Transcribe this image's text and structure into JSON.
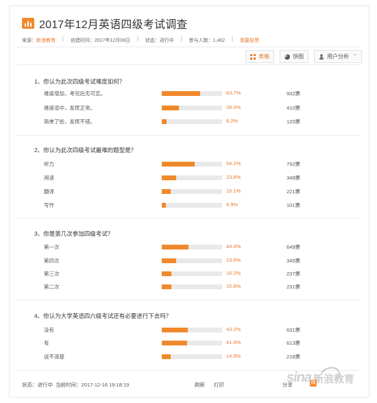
{
  "header": {
    "title": "2017年12月英语四级考试调查",
    "icon": "bar-chart-icon"
  },
  "meta": {
    "source_label": "来源：",
    "source_value": "新浪教育",
    "created_label": "创建时间：",
    "created_value": "2017年12月08日",
    "status_label": "状态：",
    "status_value": "进行中",
    "participants_label": "参与人数：",
    "participants_value": "1,462",
    "vote_link": "我要投票"
  },
  "toolbar": {
    "table_label": "表格",
    "pie_label": "饼图",
    "user_label": "用户分析"
  },
  "colors": {
    "accent": "#f0892c",
    "bar_bg": "#e9e9e9"
  },
  "questions": [
    {
      "title": "1、你认为此次四级考试难度如何？",
      "options": [
        {
          "label": "难度增加，考完后无可恋。",
          "percent": 63.7,
          "percent_text": "63.7%",
          "votes": "932票"
        },
        {
          "label": "难度适中，发挥正常。",
          "percent": 28.0,
          "percent_text": "28.0%",
          "votes": "410票"
        },
        {
          "label": "简单了些，发挥不错。",
          "percent": 8.2,
          "percent_text": "8.2%",
          "votes": "120票"
        }
      ]
    },
    {
      "title": "2、你认为此次四级考试最难的题型是？",
      "options": [
        {
          "label": "听力",
          "percent": 54.2,
          "percent_text": "54.2%",
          "votes": "792票"
        },
        {
          "label": "阅读",
          "percent": 23.8,
          "percent_text": "23.8%",
          "votes": "348票"
        },
        {
          "label": "翻译",
          "percent": 15.1,
          "percent_text": "15.1%",
          "votes": "221票"
        },
        {
          "label": "写作",
          "percent": 6.9,
          "percent_text": "6.9%",
          "votes": "101票"
        }
      ]
    },
    {
      "title": "3、你是第几次参加四级考试？",
      "options": [
        {
          "label": "第一次",
          "percent": 44.4,
          "percent_text": "44.4%",
          "votes": "649票"
        },
        {
          "label": "第四次",
          "percent": 23.6,
          "percent_text": "23.6%",
          "votes": "345票"
        },
        {
          "label": "第三次",
          "percent": 16.2,
          "percent_text": "16.2%",
          "votes": "237票"
        },
        {
          "label": "第二次",
          "percent": 15.8,
          "percent_text": "15.8%",
          "votes": "231票"
        }
      ]
    },
    {
      "title": "4、你认为大学英语四六级考试还有必要进行下去吗？",
      "options": [
        {
          "label": "没有",
          "percent": 43.2,
          "percent_text": "43.2%",
          "votes": "631票"
        },
        {
          "label": "有",
          "percent": 41.9,
          "percent_text": "41.9%",
          "votes": "613票"
        },
        {
          "label": "说不清楚",
          "percent": 14.9,
          "percent_text": "14.9%",
          "votes": "218票"
        }
      ]
    }
  ],
  "footer": {
    "status": "状态：进行中",
    "current_time": "当前时间：2017-12-16 19:18:19",
    "refresh": "刷新",
    "print": "打印",
    "share": "分享",
    "share_icon": "weibo-icon"
  },
  "watermark": {
    "brand": "sina",
    "brand_cn": "新浪教育"
  }
}
